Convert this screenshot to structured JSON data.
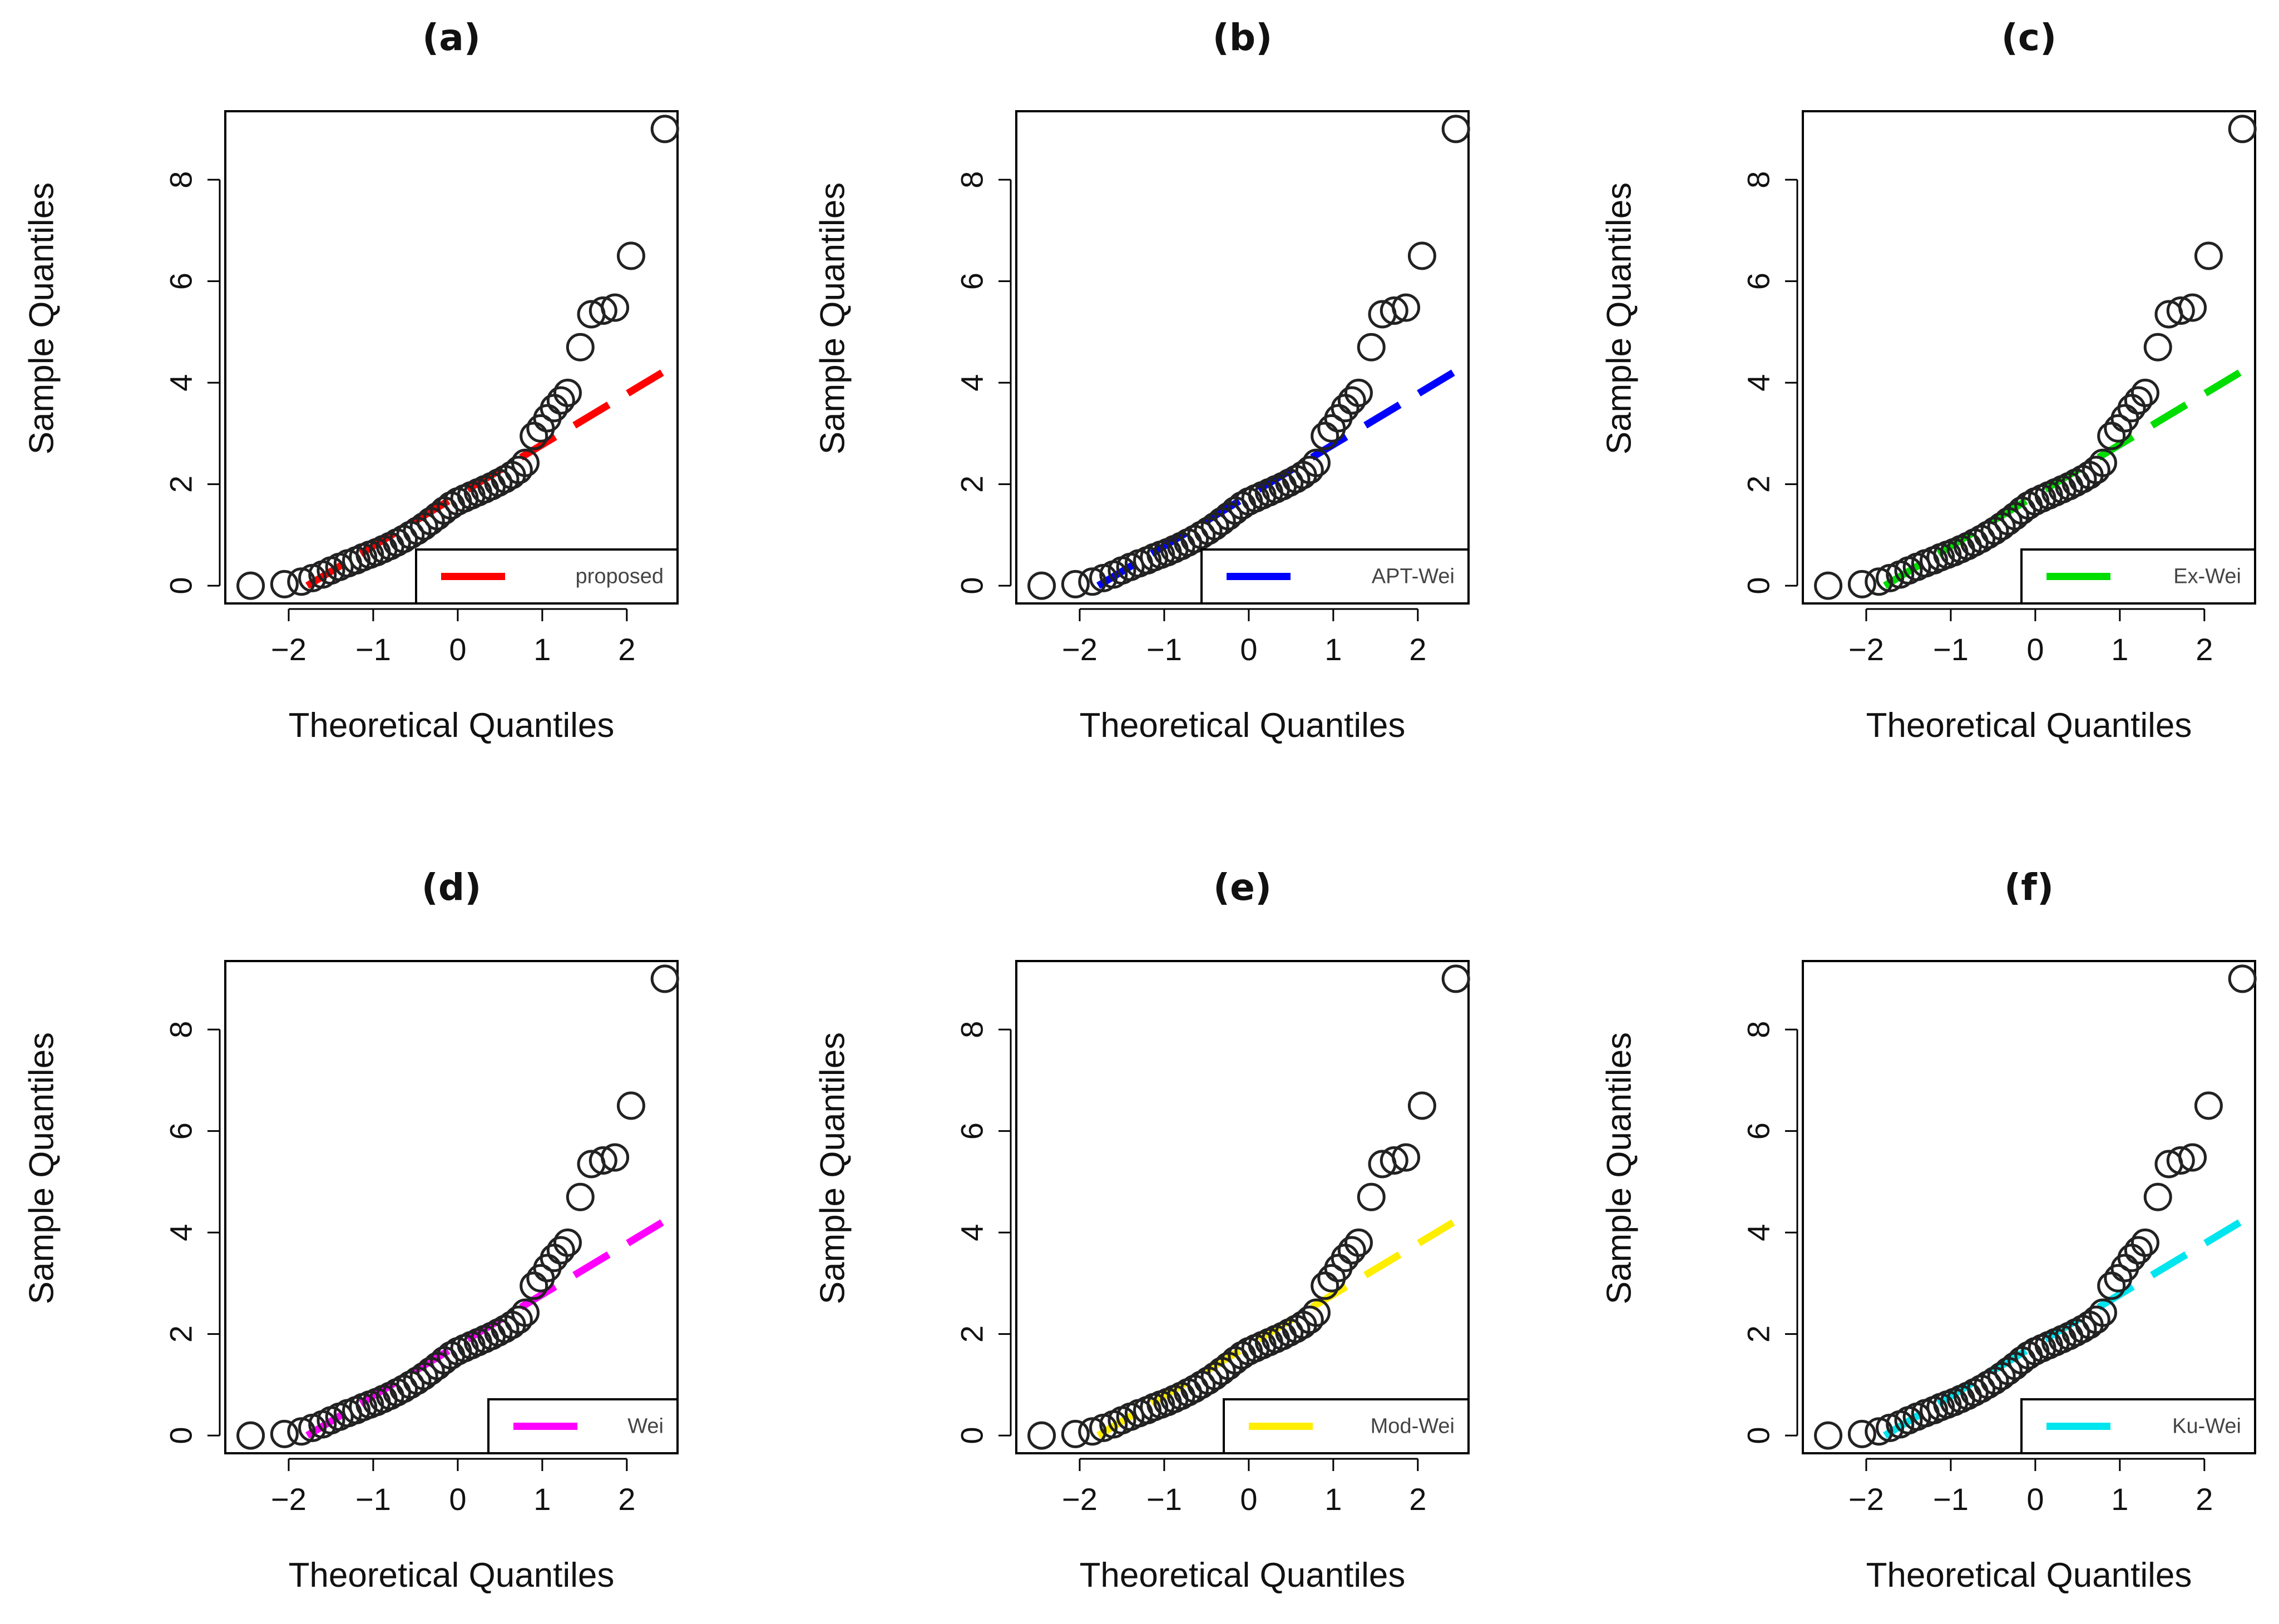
{
  "chart_data": [
    {
      "type": "scatter",
      "panel": "(a)",
      "title": "(a)",
      "xlabel": "Theoretical Quantiles",
      "ylabel": "Sample Quantiles",
      "xlim": [
        -2.75,
        2.6
      ],
      "ylim": [
        -0.35,
        9.35
      ],
      "xticks": [
        -2,
        -1,
        0,
        1,
        2
      ],
      "yticks": [
        0,
        2,
        4,
        6,
        8
      ],
      "marker": "O",
      "line": {
        "label": "proposed",
        "color": "#ff0000",
        "intercept": 1.78,
        "slope": 1.0
      },
      "legend": "bottom-right"
    },
    {
      "type": "scatter",
      "panel": "(b)",
      "title": "(b)",
      "xlabel": "Theoretical Quantiles",
      "ylabel": "Sample Quantiles",
      "xlim": [
        -2.75,
        2.6
      ],
      "ylim": [
        -0.35,
        9.35
      ],
      "xticks": [
        -2,
        -1,
        0,
        1,
        2
      ],
      "yticks": [
        0,
        2,
        4,
        6,
        8
      ],
      "marker": "O",
      "line": {
        "label": "APT-Wei",
        "color": "#0000ff",
        "intercept": 1.78,
        "slope": 1.0
      },
      "legend": "bottom-right"
    },
    {
      "type": "scatter",
      "panel": "(c)",
      "title": "(c)",
      "xlabel": "Theoretical Quantiles",
      "ylabel": "Sample Quantiles",
      "xlim": [
        -2.75,
        2.6
      ],
      "ylim": [
        -0.35,
        9.35
      ],
      "xticks": [
        -2,
        -1,
        0,
        1,
        2
      ],
      "yticks": [
        0,
        2,
        4,
        6,
        8
      ],
      "marker": "O",
      "line": {
        "label": "Ex-Wei",
        "color": "#00dd00",
        "intercept": 1.78,
        "slope": 1.0
      },
      "legend": "bottom-right"
    },
    {
      "type": "scatter",
      "panel": "(d)",
      "title": "(d)",
      "xlabel": "Theoretical Quantiles",
      "ylabel": "Sample Quantiles",
      "xlim": [
        -2.75,
        2.6
      ],
      "ylim": [
        -0.35,
        9.35
      ],
      "xticks": [
        -2,
        -1,
        0,
        1,
        2
      ],
      "yticks": [
        0,
        2,
        4,
        6,
        8
      ],
      "marker": "O",
      "line": {
        "label": "Wei",
        "color": "#ff00ff",
        "intercept": 1.78,
        "slope": 1.0
      },
      "legend": "bottom-right"
    },
    {
      "type": "scatter",
      "panel": "(e)",
      "title": "(e)",
      "xlabel": "Theoretical Quantiles",
      "ylabel": "Sample Quantiles",
      "xlim": [
        -2.75,
        2.6
      ],
      "ylim": [
        -0.35,
        9.35
      ],
      "xticks": [
        -2,
        -1,
        0,
        1,
        2
      ],
      "yticks": [
        0,
        2,
        4,
        6,
        8
      ],
      "marker": "O",
      "line": {
        "label": "Mod-Wei",
        "color": "#ffee00",
        "intercept": 1.78,
        "slope": 1.0
      },
      "legend": "bottom-right"
    },
    {
      "type": "scatter",
      "panel": "(f)",
      "title": "(f)",
      "xlabel": "Theoretical Quantiles",
      "ylabel": "Sample Quantiles",
      "xlim": [
        -2.75,
        2.6
      ],
      "ylim": [
        -0.35,
        9.35
      ],
      "xticks": [
        -2,
        -1,
        0,
        1,
        2
      ],
      "yticks": [
        0,
        2,
        4,
        6,
        8
      ],
      "marker": "O",
      "line": {
        "label": "Ku-Wei",
        "color": "#00e5ee",
        "intercept": 1.78,
        "slope": 1.0
      },
      "legend": "bottom-right"
    }
  ],
  "qq_points": [
    [
      -2.45,
      0.0
    ],
    [
      -2.05,
      0.03
    ],
    [
      -1.85,
      0.08
    ],
    [
      -1.72,
      0.15
    ],
    [
      -1.6,
      0.22
    ],
    [
      -1.5,
      0.3
    ],
    [
      -1.4,
      0.37
    ],
    [
      -1.3,
      0.44
    ],
    [
      -1.2,
      0.5
    ],
    [
      -1.12,
      0.56
    ],
    [
      -1.04,
      0.61
    ],
    [
      -0.96,
      0.66
    ],
    [
      -0.88,
      0.72
    ],
    [
      -0.8,
      0.78
    ],
    [
      -0.72,
      0.85
    ],
    [
      -0.64,
      0.92
    ],
    [
      -0.56,
      1.0
    ],
    [
      -0.48,
      1.08
    ],
    [
      -0.4,
      1.17
    ],
    [
      -0.32,
      1.27
    ],
    [
      -0.24,
      1.37
    ],
    [
      -0.16,
      1.48
    ],
    [
      -0.08,
      1.58
    ],
    [
      0.0,
      1.66
    ],
    [
      0.08,
      1.72
    ],
    [
      0.16,
      1.78
    ],
    [
      0.24,
      1.84
    ],
    [
      0.32,
      1.9
    ],
    [
      0.4,
      1.96
    ],
    [
      0.48,
      2.03
    ],
    [
      0.56,
      2.1
    ],
    [
      0.64,
      2.18
    ],
    [
      0.72,
      2.28
    ],
    [
      0.8,
      2.42
    ],
    [
      0.9,
      2.95
    ],
    [
      0.98,
      3.1
    ],
    [
      1.06,
      3.3
    ],
    [
      1.14,
      3.5
    ],
    [
      1.22,
      3.65
    ],
    [
      1.3,
      3.8
    ],
    [
      1.45,
      4.7
    ],
    [
      1.58,
      5.35
    ],
    [
      1.72,
      5.42
    ],
    [
      1.86,
      5.48
    ],
    [
      2.05,
      6.5
    ],
    [
      2.45,
      9.0
    ]
  ]
}
